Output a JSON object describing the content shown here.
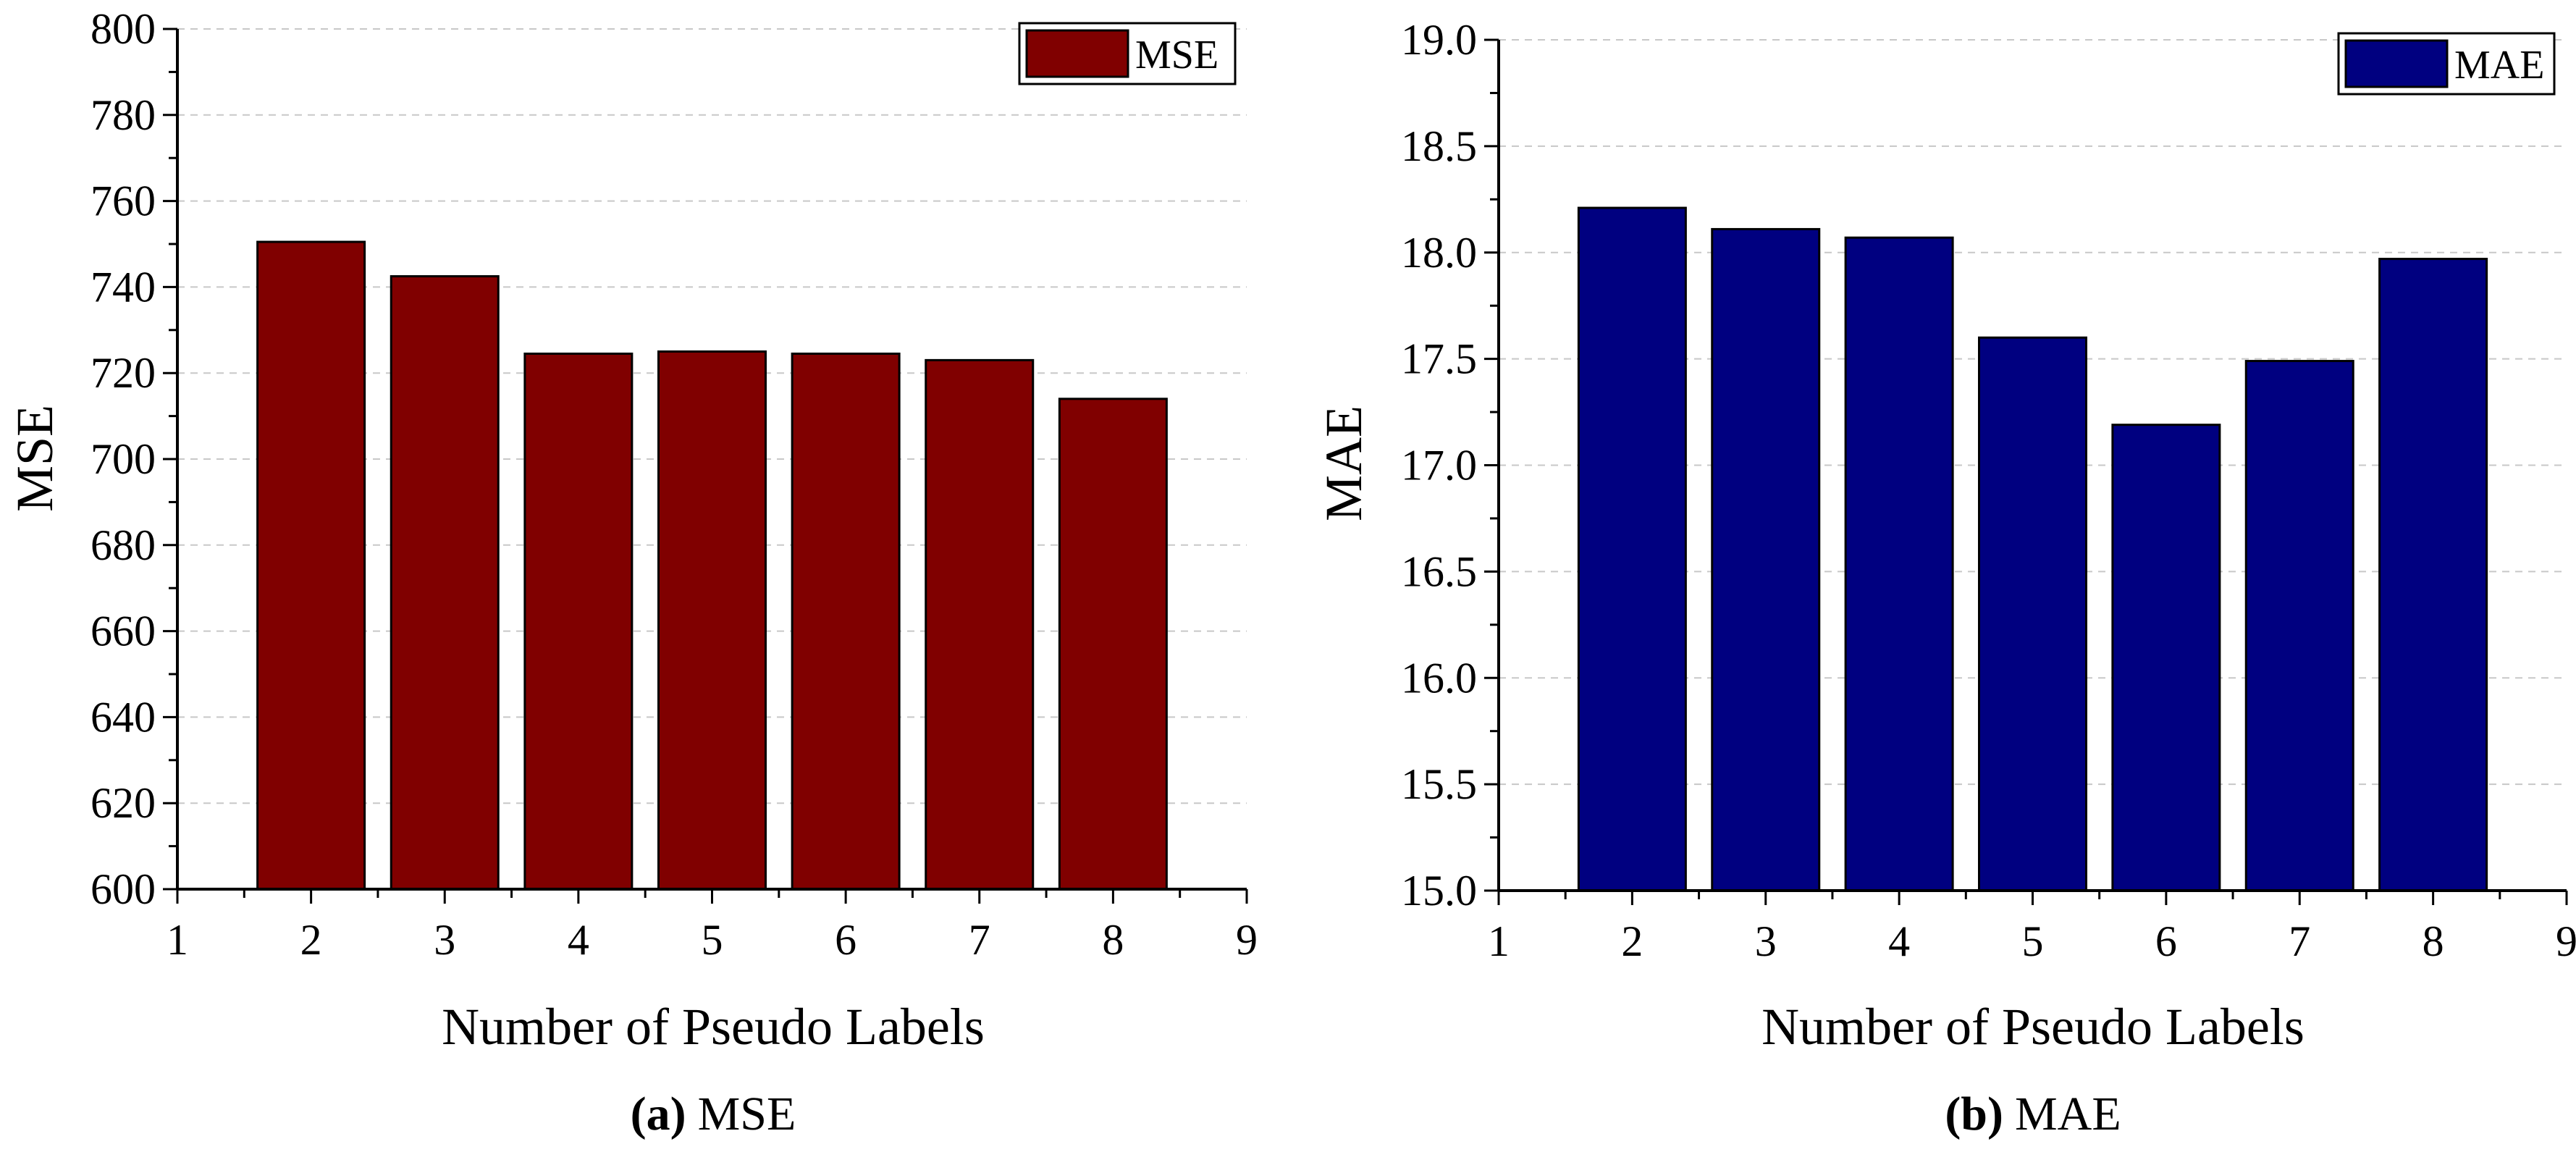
{
  "chart_data": [
    {
      "id": "a",
      "type": "bar",
      "x": [
        2,
        3,
        4,
        5,
        6,
        7,
        8
      ],
      "values": [
        750.5,
        742.5,
        724.5,
        725,
        724.5,
        723,
        714
      ],
      "series_name": "MSE",
      "xlabel": "Number of Pseudo Labels",
      "ylabel": "MSE",
      "xlim": [
        1,
        9
      ],
      "ylim": [
        600,
        800
      ],
      "xticks": [
        1,
        2,
        3,
        4,
        5,
        6,
        7,
        8,
        9
      ],
      "yticks": [
        600,
        620,
        640,
        660,
        680,
        700,
        720,
        740,
        760,
        780,
        800
      ],
      "ytick_labels": [
        "600",
        "620",
        "640",
        "660",
        "680",
        "700",
        "720",
        "740",
        "760",
        "780",
        "800"
      ],
      "grid": true,
      "legend_position": "top-right",
      "color": "#800000",
      "caption_tag": "(a)",
      "caption_text": "MSE"
    },
    {
      "id": "b",
      "type": "bar",
      "x": [
        2,
        3,
        4,
        5,
        6,
        7,
        8
      ],
      "values": [
        18.21,
        18.11,
        18.07,
        17.6,
        17.19,
        17.49,
        17.97
      ],
      "series_name": "MAE",
      "xlabel": "Number of Pseudo Labels",
      "ylabel": "MAE",
      "xlim": [
        1,
        9
      ],
      "ylim": [
        15.0,
        19.0
      ],
      "xticks": [
        1,
        2,
        3,
        4,
        5,
        6,
        7,
        8,
        9
      ],
      "yticks": [
        15.0,
        15.5,
        16.0,
        16.5,
        17.0,
        17.5,
        18.0,
        18.5,
        19.0
      ],
      "ytick_labels": [
        "15.0",
        "15.5",
        "16.0",
        "16.5",
        "17.0",
        "17.5",
        "18.0",
        "18.5",
        "19.0"
      ],
      "grid": true,
      "legend_position": "top-right",
      "color": "#000080",
      "caption_tag": "(b)",
      "caption_text": "MAE"
    }
  ]
}
